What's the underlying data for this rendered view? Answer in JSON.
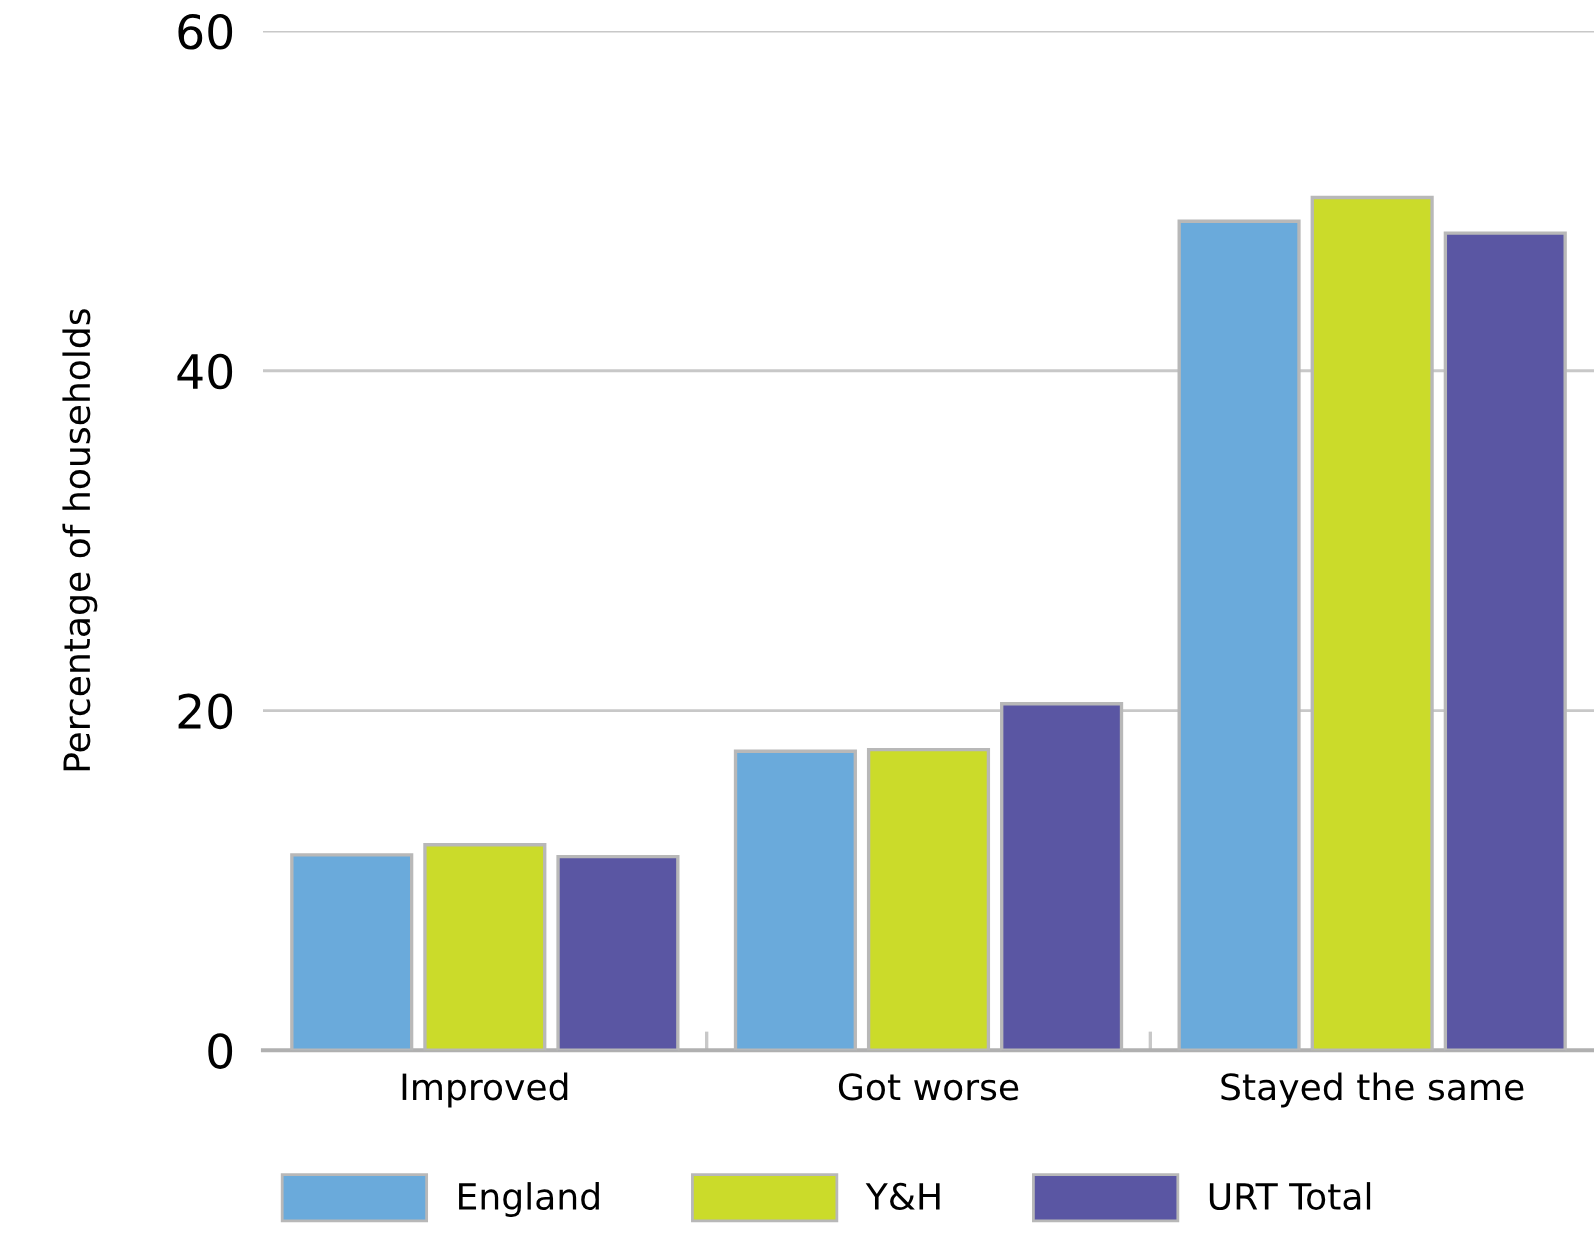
{
  "chart_data": {
    "type": "bar",
    "ylabel": "Percentage of households",
    "categories": [
      "Improved",
      "Got worse",
      "Stayed the same"
    ],
    "series": [
      {
        "name": "England",
        "color": "#6aaadb",
        "values": [
          11.5,
          17.6,
          48.8
        ]
      },
      {
        "name": "Y&H",
        "color": "#cbdb2a",
        "values": [
          12.1,
          17.7,
          50.2
        ]
      },
      {
        "name": "URT Total",
        "color": "#5a56a3",
        "values": [
          11.4,
          20.4,
          48.1
        ]
      }
    ],
    "ylim": [
      0,
      60
    ],
    "yticks": [
      0,
      20,
      40,
      60
    ],
    "grid": "y",
    "legend": "bottom"
  }
}
